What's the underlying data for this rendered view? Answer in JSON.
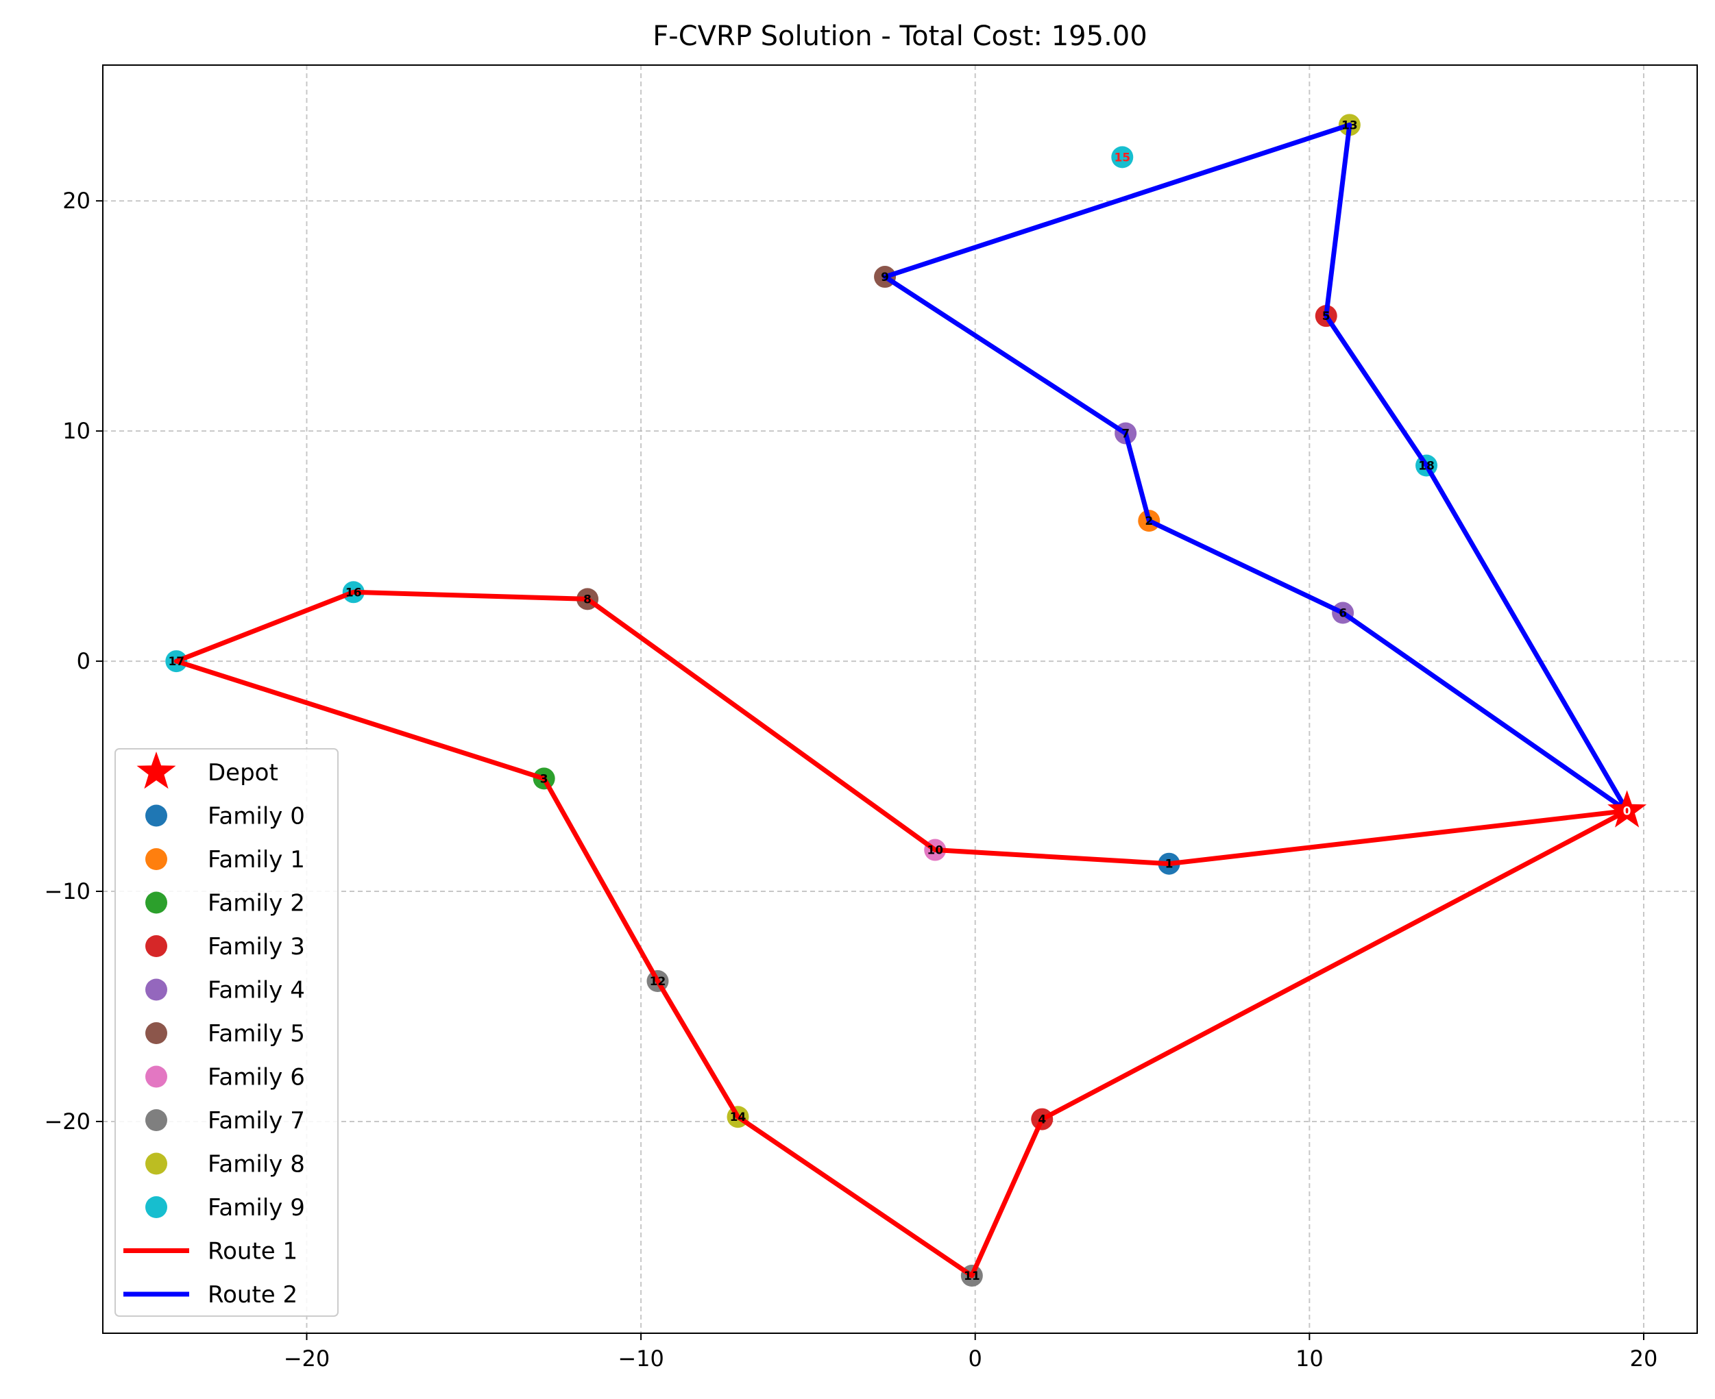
{
  "chart_data": {
    "type": "scatter",
    "title": "F-CVRP Solution - Total Cost: 195.00",
    "xlabel": "",
    "ylabel": "",
    "xlim": [
      -26.1,
      21.6
    ],
    "ylim": [
      -29.2,
      25.9
    ],
    "x_ticks": [
      -20,
      -10,
      0,
      10,
      20
    ],
    "y_ticks": [
      20,
      10,
      0,
      -10,
      -20
    ],
    "x_tick_labels": [
      "−20",
      "−10",
      "0",
      "10",
      "20"
    ],
    "y_tick_labels": [
      "20",
      "10",
      "0",
      "−10",
      "−20"
    ],
    "grid": true,
    "legend_position": "lower-left",
    "depot": {
      "name": "Depot",
      "id": "0",
      "x": 19.5,
      "y": -6.5,
      "color": "#ff0000",
      "marker": "star"
    },
    "families": [
      {
        "name": "Family 0",
        "color": "#1f77b4"
      },
      {
        "name": "Family 1",
        "color": "#ff7f0e"
      },
      {
        "name": "Family 2",
        "color": "#2ca02c"
      },
      {
        "name": "Family 3",
        "color": "#d62728"
      },
      {
        "name": "Family 4",
        "color": "#9467bd"
      },
      {
        "name": "Family 5",
        "color": "#8c564b"
      },
      {
        "name": "Family 6",
        "color": "#e377c2"
      },
      {
        "name": "Family 7",
        "color": "#7f7f7f"
      },
      {
        "name": "Family 8",
        "color": "#bcbd22"
      },
      {
        "name": "Family 9",
        "color": "#17becf"
      }
    ],
    "nodes": [
      {
        "id": "1",
        "x": 5.8,
        "y": -8.8,
        "family": 0,
        "unvisited": false
      },
      {
        "id": "2",
        "x": 5.2,
        "y": 6.1,
        "family": 1,
        "unvisited": false
      },
      {
        "id": "3",
        "x": -12.9,
        "y": -5.1,
        "family": 2,
        "unvisited": false
      },
      {
        "id": "4",
        "x": 2.0,
        "y": -19.9,
        "family": 3,
        "unvisited": false
      },
      {
        "id": "5",
        "x": 10.5,
        "y": 15.0,
        "family": 3,
        "unvisited": false
      },
      {
        "id": "6",
        "x": 11.0,
        "y": 2.1,
        "family": 4,
        "unvisited": false
      },
      {
        "id": "7",
        "x": 4.5,
        "y": 9.9,
        "family": 4,
        "unvisited": false
      },
      {
        "id": "8",
        "x": -11.6,
        "y": 2.7,
        "family": 5,
        "unvisited": false
      },
      {
        "id": "9",
        "x": -2.7,
        "y": 16.7,
        "family": 5,
        "unvisited": false
      },
      {
        "id": "10",
        "x": -1.2,
        "y": -8.2,
        "family": 6,
        "unvisited": false
      },
      {
        "id": "11",
        "x": -0.1,
        "y": -26.7,
        "family": 7,
        "unvisited": false
      },
      {
        "id": "12",
        "x": -9.5,
        "y": -13.9,
        "family": 7,
        "unvisited": false
      },
      {
        "id": "13",
        "x": 11.2,
        "y": 23.3,
        "family": 8,
        "unvisited": false
      },
      {
        "id": "14",
        "x": -7.1,
        "y": -19.8,
        "family": 8,
        "unvisited": false
      },
      {
        "id": "15",
        "x": 4.4,
        "y": 21.9,
        "family": 9,
        "unvisited": true
      },
      {
        "id": "16",
        "x": -18.6,
        "y": 3.0,
        "family": 9,
        "unvisited": false
      },
      {
        "id": "17",
        "x": -23.9,
        "y": 0.0,
        "family": 9,
        "unvisited": false
      },
      {
        "id": "18",
        "x": 13.5,
        "y": 8.5,
        "family": 9,
        "unvisited": false
      }
    ],
    "series": [
      {
        "name": "Route 1",
        "color": "#ff0000",
        "stops": [
          "0",
          "1",
          "10",
          "8",
          "16",
          "17",
          "3",
          "12",
          "14",
          "11",
          "4",
          "0"
        ]
      },
      {
        "name": "Route 2",
        "color": "#0000ff",
        "stops": [
          "0",
          "6",
          "2",
          "7",
          "9",
          "13",
          "5",
          "18",
          "0"
        ]
      }
    ]
  }
}
